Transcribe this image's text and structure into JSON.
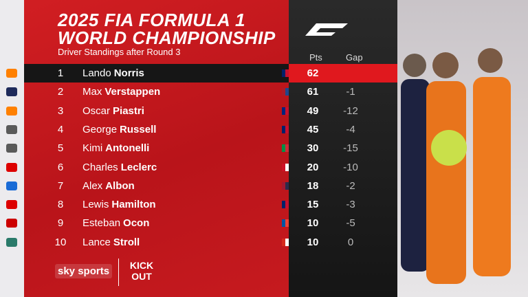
{
  "header": {
    "title_line1": "2025 FIA FORMULA 1",
    "title_line2": "WORLD CHAMPIONSHIP",
    "subtitle": "Driver Standings after Round 3"
  },
  "columns": {
    "points": "Pts",
    "gap": "Gap"
  },
  "rows": [
    {
      "position": 1,
      "first_name": "Lando",
      "last_name": "Norris",
      "points": 62
    },
    {
      "position": 2,
      "first_name": "Max",
      "last_name": "Verstappen",
      "points": 61,
      "gap": -1
    },
    {
      "position": 3,
      "first_name": "Oscar",
      "last_name": "Piastri",
      "points": 49,
      "gap": -12
    },
    {
      "position": 4,
      "first_name": "George",
      "last_name": "Russell",
      "points": 45,
      "gap": -4
    },
    {
      "position": 5,
      "first_name": "Kimi",
      "last_name": "Antonelli",
      "points": 30,
      "gap": -15
    },
    {
      "position": 6,
      "first_name": "Charles",
      "last_name": "Leclerc",
      "points": 20,
      "gap": -10
    },
    {
      "position": 7,
      "first_name": "Alex",
      "last_name": "Albon",
      "points": 18,
      "gap": -2
    },
    {
      "position": 8,
      "first_name": "Lewis",
      "last_name": "Hamilton",
      "points": 15,
      "gap": -3
    },
    {
      "position": 9,
      "first_name": "Esteban",
      "last_name": "Ocon",
      "points": 10,
      "gap": -5
    },
    {
      "position": 10,
      "first_name": "Lance",
      "last_name": "Stroll",
      "points": 10,
      "gap": 0
    }
  ],
  "footer": {
    "broadcaster": "sky sports",
    "show": "KICK OUT"
  }
}
